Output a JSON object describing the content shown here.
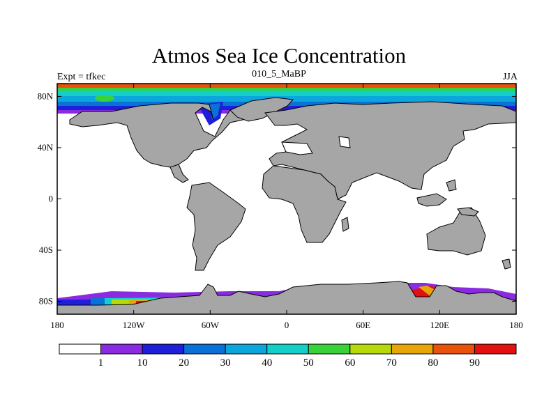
{
  "title": "Atmos Sea Ice Concentration",
  "subtitle_left": "Expt = tfkec",
  "subtitle_center": "010_5_MaBP",
  "subtitle_right": "JJA",
  "map": {
    "projection": "cylindrical equidistant",
    "lon_range": [
      -180,
      180
    ],
    "lat_range": [
      -90,
      90
    ],
    "land_color": "#a6a6a6",
    "ocean_color": "#ffffff",
    "x_tick_labels": [
      {
        "lon": -180,
        "label": "180"
      },
      {
        "lon": -120,
        "label": "120W"
      },
      {
        "lon": -60,
        "label": "60W"
      },
      {
        "lon": 0,
        "label": "0"
      },
      {
        "lon": 60,
        "label": "60E"
      },
      {
        "lon": 120,
        "label": "120E"
      },
      {
        "lon": 180,
        "label": "180"
      }
    ],
    "y_tick_labels": [
      {
        "lat": 80,
        "label": "80N"
      },
      {
        "lat": 40,
        "label": "40N"
      },
      {
        "lat": 0,
        "label": "0"
      },
      {
        "lat": -40,
        "label": "40S"
      },
      {
        "lat": -80,
        "label": "80S"
      }
    ]
  },
  "colorbar": {
    "colors": [
      "#ffffff",
      "#8a2be2",
      "#1f1fd9",
      "#0a72d6",
      "#0aa6dc",
      "#14cfc8",
      "#3ad23a",
      "#b8d80a",
      "#e6a60a",
      "#e8520a",
      "#e41010"
    ],
    "labels": [
      "1",
      "10",
      "20",
      "30",
      "40",
      "50",
      "60",
      "70",
      "80",
      "90"
    ]
  }
}
